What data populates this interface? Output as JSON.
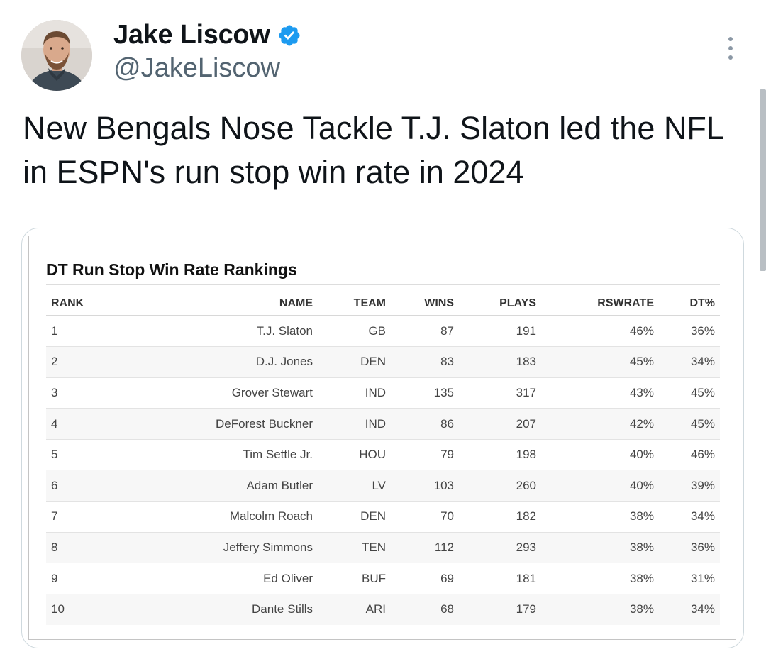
{
  "author": {
    "display_name": "Jake Liscow",
    "handle": "@JakeLiscow",
    "verified": true,
    "verified_color": "#1d9bf0"
  },
  "tweet": {
    "text": "New Bengals Nose Tackle T.J. Slaton led the NFL in ESPN's run stop win rate in 2024"
  },
  "table": {
    "title": "DT Run Stop Win Rate Rankings",
    "columns": [
      "RANK",
      "NAME",
      "TEAM",
      "WINS",
      "PLAYS",
      "RSWRATE",
      "DT%"
    ],
    "rows": [
      [
        "1",
        "T.J. Slaton",
        "GB",
        "87",
        "191",
        "46%",
        "36%"
      ],
      [
        "2",
        "D.J. Jones",
        "DEN",
        "83",
        "183",
        "45%",
        "34%"
      ],
      [
        "3",
        "Grover Stewart",
        "IND",
        "135",
        "317",
        "43%",
        "45%"
      ],
      [
        "4",
        "DeForest Buckner",
        "IND",
        "86",
        "207",
        "42%",
        "45%"
      ],
      [
        "5",
        "Tim Settle Jr.",
        "HOU",
        "79",
        "198",
        "40%",
        "46%"
      ],
      [
        "6",
        "Adam Butler",
        "LV",
        "103",
        "260",
        "40%",
        "39%"
      ],
      [
        "7",
        "Malcolm Roach",
        "DEN",
        "70",
        "182",
        "38%",
        "34%"
      ],
      [
        "8",
        "Jeffery Simmons",
        "TEN",
        "112",
        "293",
        "38%",
        "36%"
      ],
      [
        "9",
        "Ed Oliver",
        "BUF",
        "69",
        "181",
        "38%",
        "31%"
      ],
      [
        "10",
        "Dante Stills",
        "ARI",
        "68",
        "179",
        "38%",
        "34%"
      ]
    ],
    "link_color": "#1d6fc1"
  },
  "icons": {
    "more": "more-options-icon",
    "verified": "verified-badge-icon"
  }
}
